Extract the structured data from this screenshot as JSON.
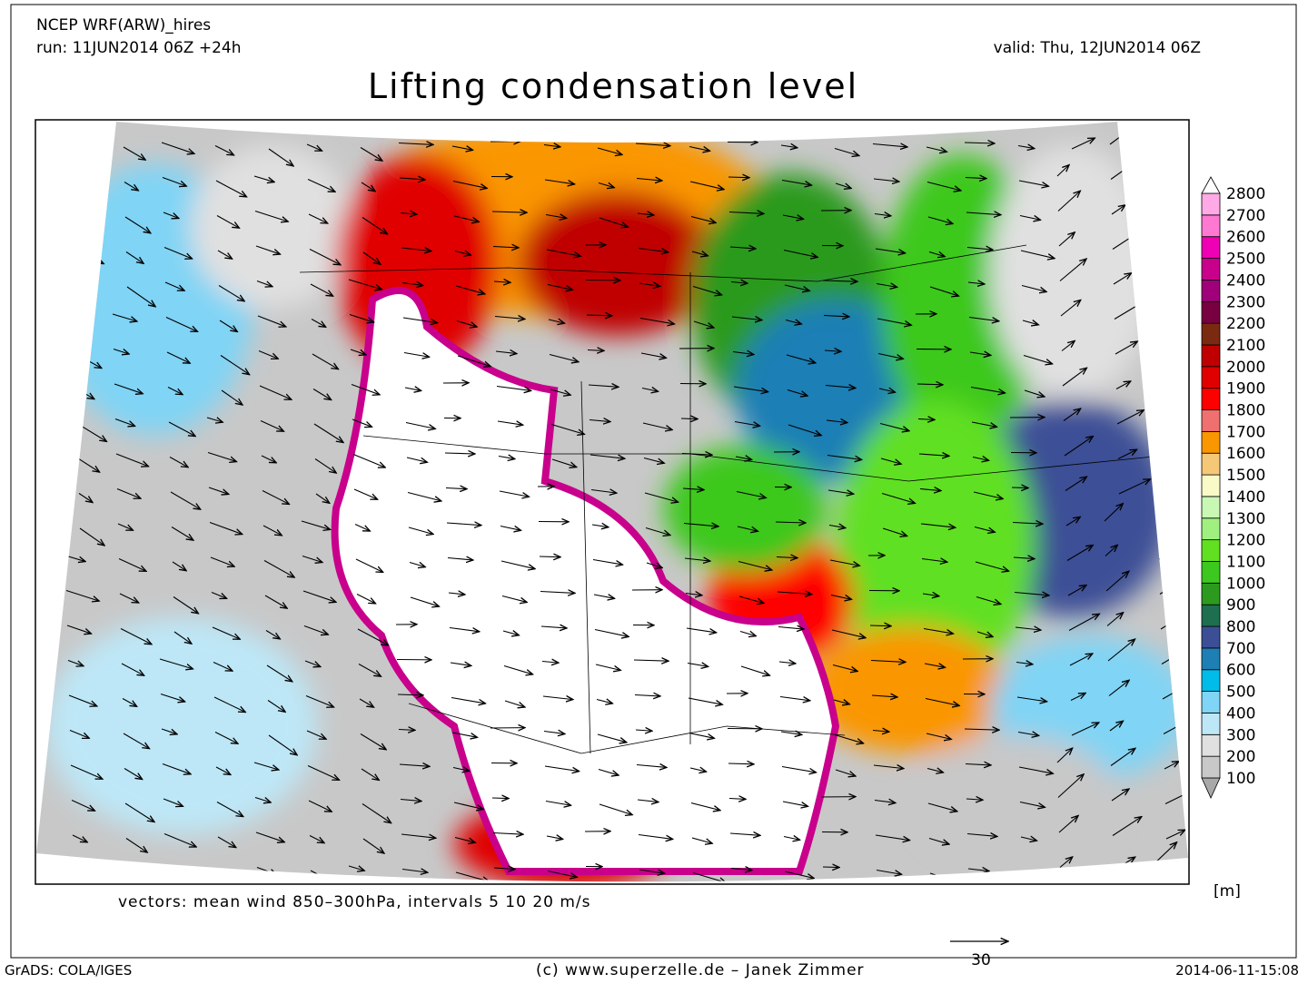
{
  "header": {
    "model": "NCEP WRF(ARW)_hires",
    "run": "run: 11JUN2014 06Z +24h",
    "valid": "valid: Thu, 12JUN2014 06Z"
  },
  "title": "Lifting condensation level",
  "colorbar": {
    "levels": [
      100,
      200,
      300,
      400,
      500,
      600,
      700,
      800,
      900,
      1000,
      1100,
      1200,
      1300,
      1400,
      1500,
      1600,
      1700,
      1800,
      1900,
      2000,
      2100,
      2200,
      2300,
      2400,
      2500,
      2600,
      2700,
      2800
    ],
    "colors": [
      "#a8a8a8",
      "#c8c8c8",
      "#e0e0e0",
      "#bde7f7",
      "#80d4f5",
      "#00bce8",
      "#1e7fb5",
      "#3c4f96",
      "#1e6e50",
      "#2c9a1e",
      "#3cc81e",
      "#60e020",
      "#a0f080",
      "#c8f8b4",
      "#fafac8",
      "#f5c878",
      "#fa9600",
      "#f07070",
      "#ff0000",
      "#e00000",
      "#c00000",
      "#7a2a10",
      "#780040",
      "#a0007a",
      "#c8008c",
      "#f000b4",
      "#ff78d2",
      "#ffaae6",
      "#ffffff"
    ],
    "unit": "[m]"
  },
  "caption": "vectors: mean wind 850–300hPa, intervals 5 10 20 m/s",
  "reference_vector": 30,
  "footer": {
    "left": "GrADS: COLA/IGES",
    "center": "(c) www.superzelle.de – Janek Zimmer",
    "right": "2014-06-11-15:08"
  }
}
